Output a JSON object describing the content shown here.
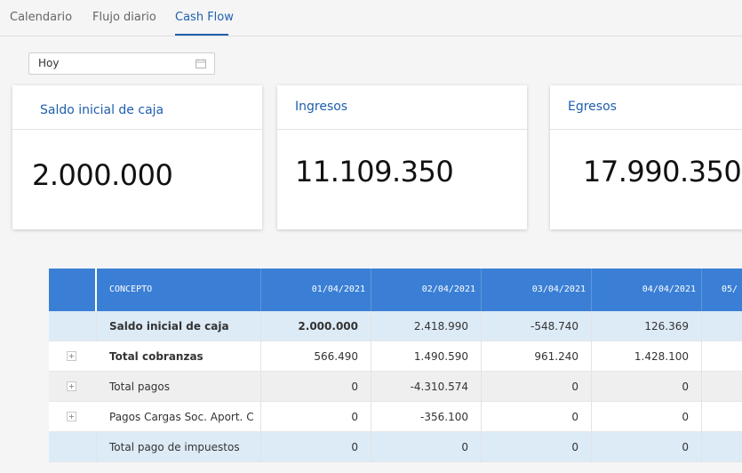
{
  "tabs": [
    {
      "label": "Calendario",
      "active": false
    },
    {
      "label": "Flujo diario",
      "active": false
    },
    {
      "label": "Cash Flow",
      "active": true
    }
  ],
  "date_filter": {
    "value": "Hoy",
    "icon": "calendar-icon"
  },
  "cards": [
    {
      "title": "Saldo inicial de caja",
      "value": "2.000.000"
    },
    {
      "title": "Ingresos",
      "value": "11.109.350"
    },
    {
      "title": "Egresos",
      "value": "17.990.350"
    }
  ],
  "table": {
    "headers": [
      "CONCEPTO",
      "01/04/2021",
      "02/04/2021",
      "03/04/2021",
      "04/04/2021",
      "05/"
    ],
    "rows": [
      {
        "label": "Saldo inicial de caja",
        "values": [
          "2.000.000",
          "2.418.990",
          "-548.740",
          "126.369",
          ""
        ]
      },
      {
        "label": "Total cobranzas",
        "values": [
          "566.490",
          "1.490.590",
          "961.240",
          "1.428.100",
          ""
        ]
      },
      {
        "label": "Total pagos",
        "values": [
          "0",
          "-4.310.574",
          "0",
          "0",
          ""
        ]
      },
      {
        "label": "Pagos Cargas Soc. Aport. C",
        "values": [
          "0",
          "-356.100",
          "0",
          "0",
          ""
        ]
      },
      {
        "label": "Total pago de impuestos",
        "values": [
          "0",
          "0",
          "0",
          "0",
          ""
        ]
      }
    ]
  },
  "colors": {
    "accent": "#1f5fad",
    "table_header": "#3a7fd5",
    "row_highlight": "#ddebf7",
    "row_gray": "#efefef"
  }
}
